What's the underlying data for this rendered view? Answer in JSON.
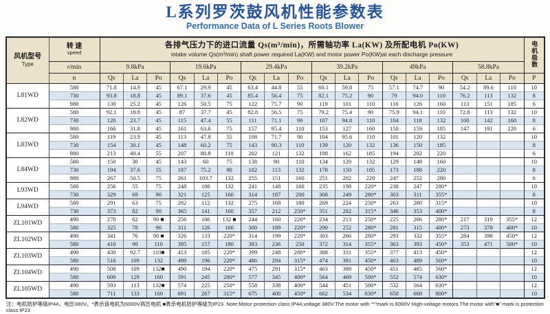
{
  "page": {
    "title": "L系列罗茨鼓风机性能参数表",
    "subtitle": "Performance Data of L Series Roots Blower",
    "title_color": "#24549e",
    "subtitle_color": "#2f6cb8",
    "header_bg": "#ece1cb",
    "stripe_color": "#d9e6f2"
  },
  "table": {
    "type_label_cn": "风机型号",
    "type_label_en": "Type",
    "speed_label_cn": "转 速",
    "speed_label_en": "speed",
    "speed_unit": "r/min",
    "speed_n": "n",
    "main_header_cn": "各排气压力下的进口流量 Qs(m³/min)，所需轴功率 La(KW) 及所配电机 Po(KW)",
    "main_header_en": "intake volume Qs(m³/min) shaft power required La(KW) and motor power Po(KW)at each discharge pressure",
    "pressures": [
      "9.8kPa",
      "19.6kPa",
      "29.4kPa",
      "39.2kPa",
      "49kPa",
      "58.8kPa"
    ],
    "sub_cols": [
      "Qs",
      "La",
      "Po"
    ],
    "poles_label": "电机极数",
    "poles_symbol": "P",
    "groups": [
      {
        "model": "L81WD",
        "rows": [
          {
            "n": "580",
            "v": [
              "71.8",
              "14.9",
              "45",
              "67.1",
              "29.9",
              "45",
              "63.4",
              "44.8",
              "55",
              "60.1",
              "59.8",
              "75",
              "57.1",
              "74.7",
              "90",
              "54.2",
              "89.6",
              "110"
            ],
            "p": "10"
          },
          {
            "n": "730",
            "v": [
              "93.8",
              "18.8",
              "45",
              "89.1",
              "37.6",
              "45",
              "85.4",
              "56.4",
              "75",
              "82.1",
              "75.2",
              "90",
              "79",
              "94.0",
              "110",
              "76.2",
              "113",
              "132"
            ],
            "p": "8"
          },
          {
            "n": "980",
            "v": [
              "130",
              "25.2",
              "45",
              "126",
              "50.5",
              "75",
              "122",
              "75.7",
              "90",
              "119",
              "101",
              "110",
              "116",
              "126",
              "160",
              "113",
              "151",
              "185"
            ],
            "p": "6"
          }
        ]
      },
      {
        "model": "L82WD",
        "rows": [
          {
            "n": "580",
            "v": [
              "92.1",
              "18.8",
              "45",
              "87",
              "37.7",
              "45",
              "82.8",
              "56.5",
              "75",
              "79.2",
              "75.4",
              "90",
              "75.9",
              "94.1",
              "110",
              "72.8",
              "113",
              "132"
            ],
            "p": "10"
          },
          {
            "n": "730",
            "v": [
              "120",
              "23.7",
              "45",
              "115",
              "47.4",
              "55",
              "111",
              "71.1",
              "90",
              "107",
              "94.8",
              "110",
              "104",
              "118",
              "132",
              "100",
              "142",
              "160"
            ],
            "p": "8"
          },
          {
            "n": "980",
            "v": [
              "166",
              "31.8",
              "45",
              "161",
              "63.6",
              "75",
              "157",
              "95.4",
              "110",
              "153",
              "127",
              "160",
              "150",
              "159",
              "185",
              "147",
              "191",
              "220"
            ],
            "p": "6"
          }
        ]
      },
      {
        "model": "L83WD",
        "rows": [
          {
            "n": "580",
            "v": [
              "119",
              "23.9",
              "45",
              "113",
              "47.8",
              "55",
              "108",
              "71.7",
              "90",
              "104",
              "95.6",
              "110",
              "101",
              "120",
              "132",
              "",
              "",
              ""
            ],
            "p": "10"
          },
          {
            "n": "730",
            "v": [
              "154",
              "30.1",
              "45",
              "148",
              "60.2",
              "75",
              "143",
              "90.3",
              "110",
              "139",
              "120",
              "132",
              "136",
              "150",
              "185",
              "",
              "",
              ""
            ],
            "p": "8"
          },
          {
            "n": "980",
            "v": [
              "213",
              "40.4",
              "55",
              "207",
              "80.8",
              "110",
              "202",
              "121",
              "132",
              "198",
              "162",
              "185",
              "194",
              "202",
              "220",
              "",
              "",
              ""
            ],
            "p": "6"
          }
        ]
      },
      {
        "model": "L84WD",
        "rows": [
          {
            "n": "580",
            "v": [
              "150",
              "30",
              "45",
              "143",
              "60",
              "75",
              "138",
              "90",
              "110",
              "134",
              "120",
              "132",
              "129",
              "149",
              "160",
              "",
              "",
              ""
            ],
            "p": "10"
          },
          {
            "n": "730",
            "v": [
              "194",
              "37.6",
              "55",
              "187",
              "75.2",
              "90",
              "182",
              "113",
              "132",
              "178",
              "150",
              "185",
              "173",
              "188",
              "220",
              "",
              "",
              ""
            ],
            "p": "8"
          },
          {
            "n": "980",
            "v": [
              "267",
              "50.5",
              "75",
              "261",
              "103.7",
              "132",
              "255",
              "151",
              "160",
              "251",
              "202",
              "220",
              "247",
              "252",
              "280",
              "",
              "",
              ""
            ],
            "p": "6"
          }
        ]
      },
      {
        "model": "L93WD",
        "rows": [
          {
            "n": "580",
            "v": [
              "256",
              "55",
              "75",
              "248",
              "106",
              "132",
              "241",
              "148",
              "160",
              "235",
              "198",
              "220*",
              "230",
              "247",
              "280*",
              "",
              "",
              ""
            ],
            "p": "10"
          },
          {
            "n": "730",
            "v": [
              "329",
              "69",
              "90",
              "321",
              "125",
              "160",
              "314",
              "187",
              "200",
              "308",
              "249",
              "280*",
              "303",
              "311",
              "355*",
              "",
              "",
              ""
            ],
            "p": "8"
          }
        ]
      },
      {
        "model": "L94WD",
        "rows": [
          {
            "n": "580",
            "v": [
              "291",
              "63",
              "75",
              "282",
              "112",
              "132",
              "275",
              "168",
              "180",
              "269",
              "224",
              "250*",
              "263",
              "280",
              "315*",
              "",
              "",
              ""
            ],
            "p": "10"
          },
          {
            "n": "730",
            "v": [
              "373",
              "82",
              "90",
              "365",
              "141",
              "160",
              "357",
              "212",
              "250*",
              "351",
              "282",
              "315*",
              "346",
              "353",
              "400*",
              "",
              "",
              ""
            ],
            "p": "8"
          }
        ]
      },
      {
        "model": "ZL101WD",
        "rows": [
          {
            "n": "490",
            "v": [
              "270",
              "62",
              "90 ■",
              "256",
              "106",
              "132 ■",
              "244",
              "160",
              "220*",
              "234",
              "213",
              "250*",
              "225",
              "266",
              "280*",
              "217",
              "319",
              "355*"
            ],
            "p": "12"
          },
          {
            "n": "580",
            "v": [
              "325",
              "78",
              "90",
              "311",
              "126",
              "160",
              "300",
              "189",
              "220*",
              "290",
              "252",
              "280*",
              "281",
              "315",
              "400*",
              "273",
              "378",
              "400*"
            ],
            "p": "10"
          }
        ]
      },
      {
        "model": "ZL102WD",
        "rows": [
          {
            "n": "490",
            "v": [
              "341",
              "76",
              "90 ■",
              "326",
              "133",
              "220*",
              "314",
              "199",
              "220*",
              "303",
              "266",
              "280*",
              "293",
              "332",
              "355*",
              "284",
              "398",
              "450*"
            ],
            "p": "12"
          },
          {
            "n": "580",
            "v": [
              "410",
              "90",
              "110",
              "395",
              "157",
              "180",
              "383",
              "236",
              "250",
              "372",
              "314",
              "355*",
              "363",
              "393",
              "450*",
              "353",
              "471",
              "500*"
            ],
            "p": "10"
          }
        ]
      },
      {
        "model": "ZL103WD",
        "rows": [
          {
            "n": "490",
            "v": [
              "430",
              "92.7",
              "110■",
              "413",
              "165",
              "220*",
              "399",
              "248",
              "280*",
              "388",
              "331",
              "355*",
              "377",
              "413",
              "450*",
              "",
              "",
              ""
            ],
            "p": "12"
          },
          {
            "n": "580",
            "v": [
              "516",
              "109",
              "132",
              "499",
              "196",
              "220*",
              "486",
              "294",
              "315*",
              "474",
              "391",
              "450*",
              "463",
              "489",
              "560*",
              "",
              "",
              ""
            ],
            "p": "10"
          }
        ]
      },
      {
        "model": "ZL104WD",
        "rows": [
          {
            "n": "490",
            "v": [
              "508",
              "109",
              "132■",
              "490",
              "194",
              "220*",
              "475",
              "291",
              "315*",
              "463",
              "388",
              "450*",
              "451",
              "485",
              "560*",
              "",
              "",
              ""
            ],
            "p": "12"
          },
          {
            "n": "580",
            "v": [
              "609",
              "129",
              "160",
              "591",
              "245",
              "280*",
              "577",
              "345",
              "400*",
              "564",
              "469",
              "500*",
              "552",
              "574",
              "630*",
              "",
              "",
              ""
            ],
            "p": "10"
          }
        ]
      },
      {
        "model": "ZL105WD",
        "rows": [
          {
            "n": "490",
            "v": [
              "593",
              "113",
              "132■",
              "574",
              "225",
              "250*",
              "558",
              "338",
              "400*",
              "544",
              "451",
              "500*",
              "532",
              "564",
              "630*",
              "",
              "",
              ""
            ],
            "p": "12"
          },
          {
            "n": "580",
            "v": [
              "711",
              "133",
              "160",
              "691",
              "267",
              "315*",
              "675",
              "400",
              "450*",
              "662",
              "534",
              "630*",
              "650",
              "668",
              "800*",
              "",
              "",
              ""
            ],
            "p": "10"
          }
        ]
      }
    ]
  },
  "footnote": "注：电机防护等级IP44，电压380V。*表示该电机为6000V高压电机 ■表示电机防护等级为IP23. Note:Motor protection class IP44,voltage 380V.The motor with \"*\"mark is 6000V High-voltage motors.The motor with\"■\" mark is protection class IP23"
}
